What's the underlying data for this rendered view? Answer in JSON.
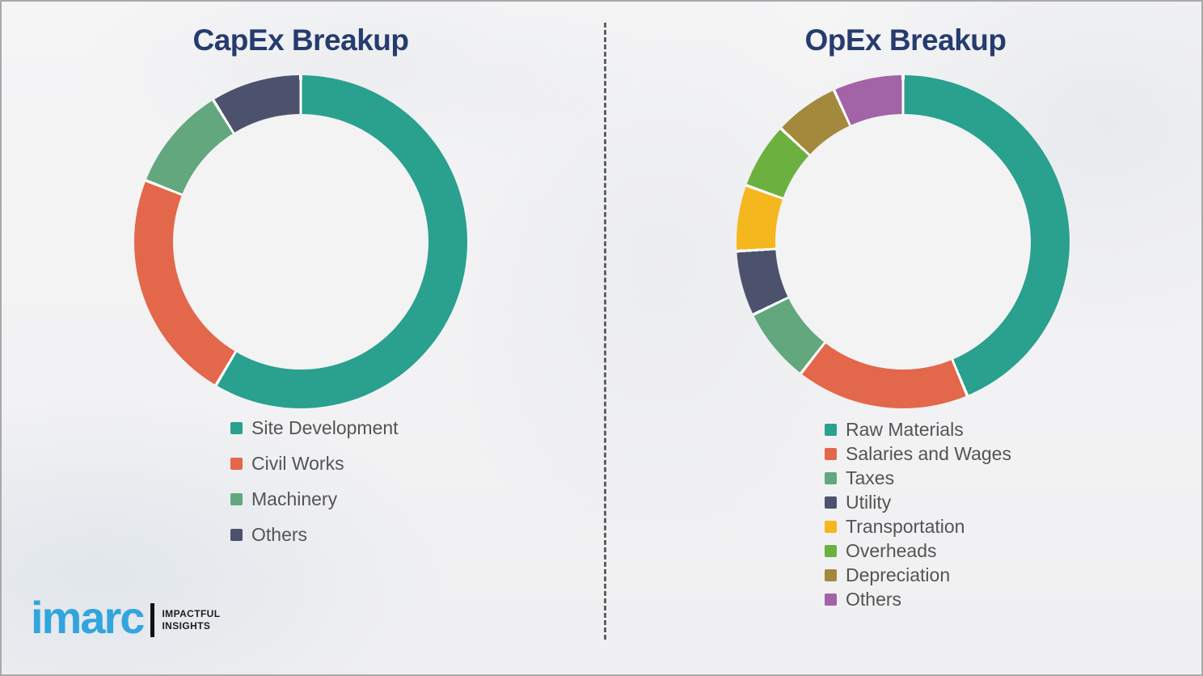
{
  "chart_data": [
    {
      "type": "pie",
      "donut": true,
      "title": "CapEx Breakup",
      "legend_position": "below",
      "segments": [
        {
          "label": "Site Development",
          "percent": 58.5,
          "color": "#2AA08F"
        },
        {
          "label": "Civil Works",
          "percent": 22.5,
          "color": "#E3674A"
        },
        {
          "label": "Machinery",
          "percent": 10.2,
          "color": "#62A77E"
        },
        {
          "label": "Others",
          "percent": 8.8,
          "color": "#4C526D"
        }
      ]
    },
    {
      "type": "pie",
      "donut": true,
      "title": "OpEx Breakup",
      "legend_position": "below",
      "segments": [
        {
          "label": "Raw Materials",
          "percent": 43.7,
          "color": "#2AA08F"
        },
        {
          "label": "Salaries and Wages",
          "percent": 16.8,
          "color": "#E3674A"
        },
        {
          "label": "Taxes",
          "percent": 7.3,
          "color": "#62A77E"
        },
        {
          "label": "Utility",
          "percent": 6.3,
          "color": "#4C526D"
        },
        {
          "label": "Transportation",
          "percent": 6.4,
          "color": "#F5B71E"
        },
        {
          "label": "Overheads",
          "percent": 6.4,
          "color": "#6CB13F"
        },
        {
          "label": "Depreciation",
          "percent": 6.3,
          "color": "#A3893C"
        },
        {
          "label": "Others",
          "percent": 6.8,
          "color": "#A263A7"
        }
      ]
    }
  ],
  "logo": {
    "brand": "imarc",
    "tagline": [
      "IMPACTFUL",
      "INSIGHTS"
    ]
  },
  "colors": {
    "title_navy": "#263C6F",
    "legend_text": "#545454",
    "background": "#F2F2F3",
    "divider_gray": "#606060",
    "frame_gray": "#A9A9A9",
    "brand_blue": "#31A5DE",
    "segment_gap": "#FFFFFF"
  }
}
